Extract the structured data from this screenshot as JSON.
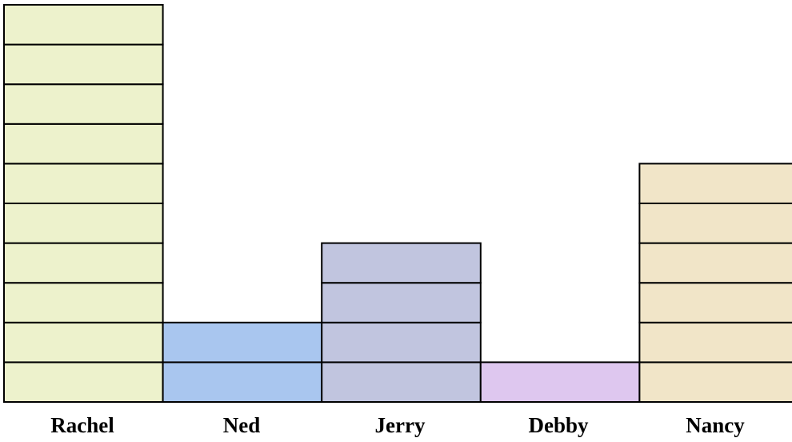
{
  "chart_data": {
    "type": "bar",
    "categories": [
      "Rachel",
      "Ned",
      "Jerry",
      "Debby",
      "Nancy"
    ],
    "values": [
      10,
      2,
      4,
      1,
      6
    ],
    "colors": [
      "#EDF2CC",
      "#A9C6EF",
      "#C1C5DF",
      "#DEC7EF",
      "#F1E5C8"
    ],
    "ylim": [
      0,
      10
    ],
    "grid": false,
    "style": "stacked unit blocks"
  }
}
